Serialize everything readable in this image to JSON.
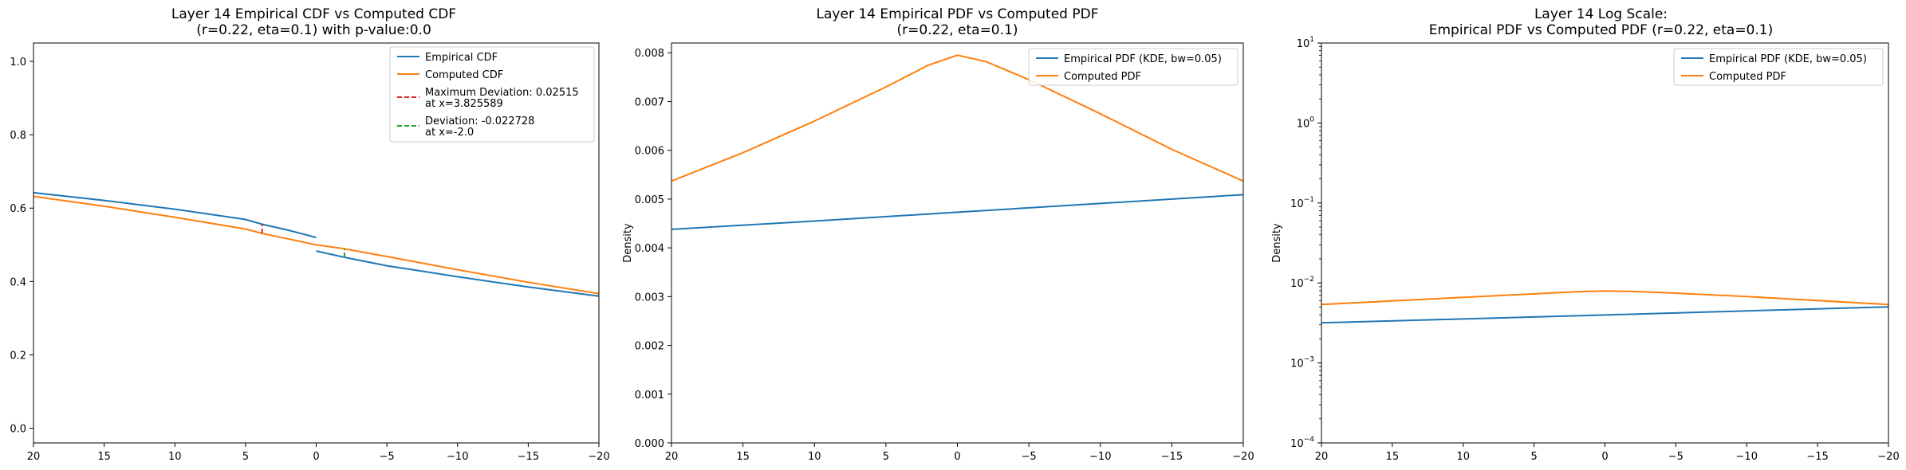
{
  "colors": {
    "empirical": "#1f77b4",
    "computed": "#ff7f0e",
    "max_dev": "#d62728",
    "dev": "#2ca02c"
  },
  "chart_data": [
    {
      "type": "line",
      "title": [
        "Layer 14 Empirical CDF vs Computed CDF",
        "(r=0.22, eta=0.1) with p-value:0.0"
      ],
      "xlabel": "",
      "ylabel": "",
      "xlim": [
        20,
        -20
      ],
      "ylim": [
        -0.04,
        1.05
      ],
      "xticks": [
        20,
        15,
        10,
        5,
        0,
        -5,
        -10,
        -15,
        -20
      ],
      "xtick_labels": [
        "20",
        "15",
        "10",
        "5",
        "0",
        "−5",
        "−10",
        "−15",
        "−20"
      ],
      "yticks": [
        0.0,
        0.2,
        0.4,
        0.6,
        0.8,
        1.0
      ],
      "ytick_labels": [
        "0.0",
        "0.2",
        "0.4",
        "0.6",
        "0.8",
        "1.0"
      ],
      "yscale": "linear",
      "legend": "top-right",
      "series": [
        {
          "name": "Empirical CDF",
          "color": "empirical",
          "segments": [
            [
              [
                20,
                0.642
              ],
              [
                15,
                0.621
              ],
              [
                10,
                0.597
              ],
              [
                5,
                0.569
              ],
              [
                3.825589,
                0.556
              ],
              [
                2,
                0.54
              ],
              [
                0,
                0.52
              ]
            ],
            [
              [
                0,
                0.483
              ],
              [
                -2,
                0.466
              ],
              [
                -5,
                0.443
              ],
              [
                -10,
                0.413
              ],
              [
                -15,
                0.385
              ],
              [
                -20,
                0.36
              ]
            ]
          ]
        },
        {
          "name": "Computed CDF",
          "color": "computed",
          "segments": [
            [
              [
                20,
                0.632
              ],
              [
                15,
                0.605
              ],
              [
                10,
                0.575
              ],
              [
                5,
                0.543
              ],
              [
                3.825589,
                0.531
              ],
              [
                0,
                0.5
              ],
              [
                -2,
                0.489
              ],
              [
                -5,
                0.468
              ],
              [
                -10,
                0.432
              ],
              [
                -15,
                0.398
              ],
              [
                -20,
                0.367
              ]
            ]
          ]
        }
      ],
      "deviation_marks": [
        {
          "name": "Maximum Deviation: 0.02515",
          "sub": "at x=3.825589",
          "color": "max_dev",
          "x": 3.825589,
          "y0": 0.531,
          "y1": 0.556
        },
        {
          "name": "Deviation: -0.022728",
          "sub": "at x=-2.0",
          "color": "dev",
          "x": -2.0,
          "y0": 0.466,
          "y1": 0.489
        }
      ]
    },
    {
      "type": "line",
      "title": [
        "Layer 14 Empirical PDF vs Computed PDF",
        "(r=0.22, eta=0.1)"
      ],
      "xlabel": "",
      "ylabel": "Density",
      "xlim": [
        20,
        -20
      ],
      "ylim": [
        0.0,
        0.0082
      ],
      "xticks": [
        20,
        15,
        10,
        5,
        0,
        -5,
        -10,
        -15,
        -20
      ],
      "xtick_labels": [
        "20",
        "15",
        "10",
        "5",
        "0",
        "−5",
        "−10",
        "−15",
        "−20"
      ],
      "yticks": [
        0.0,
        0.001,
        0.002,
        0.003,
        0.004,
        0.005,
        0.006,
        0.007,
        0.008
      ],
      "ytick_labels": [
        "0.000",
        "0.001",
        "0.002",
        "0.003",
        "0.004",
        "0.005",
        "0.006",
        "0.007",
        "0.008"
      ],
      "yscale": "linear",
      "legend": "top-right",
      "series": [
        {
          "name": "Empirical PDF (KDE, bw=0.05)",
          "color": "empirical",
          "segments": [
            [
              [
                20,
                0.00438
              ],
              [
                10,
                0.00455
              ],
              [
                0,
                0.00473
              ],
              [
                -10,
                0.00491
              ],
              [
                -20,
                0.00509
              ]
            ]
          ]
        },
        {
          "name": "Computed PDF",
          "color": "computed",
          "segments": [
            [
              [
                20,
                0.00537
              ],
              [
                15,
                0.00595
              ],
              [
                10,
                0.0066
              ],
              [
                5,
                0.0073
              ],
              [
                2,
                0.00775
              ],
              [
                0,
                0.00795
              ],
              [
                -2,
                0.00782
              ],
              [
                -5,
                0.00745
              ],
              [
                -10,
                0.00675
              ],
              [
                -15,
                0.00602
              ],
              [
                -20,
                0.00537
              ]
            ]
          ]
        }
      ]
    },
    {
      "type": "line",
      "title": [
        "Layer 14 Log Scale:",
        "Empirical PDF vs Computed PDF (r=0.22, eta=0.1)"
      ],
      "xlabel": "",
      "ylabel": "Density",
      "xlim": [
        20,
        -20
      ],
      "ylim": [
        0.0001,
        10
      ],
      "xticks": [
        20,
        15,
        10,
        5,
        0,
        -5,
        -10,
        -15,
        -20
      ],
      "xtick_labels": [
        "20",
        "15",
        "10",
        "5",
        "0",
        "−5",
        "−10",
        "−15",
        "−20"
      ],
      "yticks": [
        0.0001,
        0.001,
        0.01,
        0.1,
        1,
        10
      ],
      "ytick_bases": [
        "10",
        "10",
        "10",
        "10",
        "10",
        "10"
      ],
      "ytick_exps": [
        "−4",
        "−3",
        "−2",
        "−1",
        "0",
        "1"
      ],
      "yscale": "log",
      "legend": "top-right",
      "series": [
        {
          "name": "Empirical PDF (KDE, bw=0.05)",
          "color": "empirical",
          "segments": [
            [
              [
                20,
                0.00318
              ],
              [
                10,
                0.00355
              ],
              [
                0,
                0.00398
              ],
              [
                -10,
                0.00447
              ],
              [
                -20,
                0.00503
              ]
            ]
          ]
        },
        {
          "name": "Computed PDF",
          "color": "computed",
          "segments": [
            [
              [
                20,
                0.00537
              ],
              [
                15,
                0.00595
              ],
              [
                10,
                0.0066
              ],
              [
                5,
                0.0073
              ],
              [
                2,
                0.00775
              ],
              [
                0,
                0.00795
              ],
              [
                -2,
                0.00782
              ],
              [
                -5,
                0.00745
              ],
              [
                -10,
                0.00675
              ],
              [
                -15,
                0.00602
              ],
              [
                -20,
                0.00537
              ]
            ]
          ]
        }
      ]
    }
  ]
}
